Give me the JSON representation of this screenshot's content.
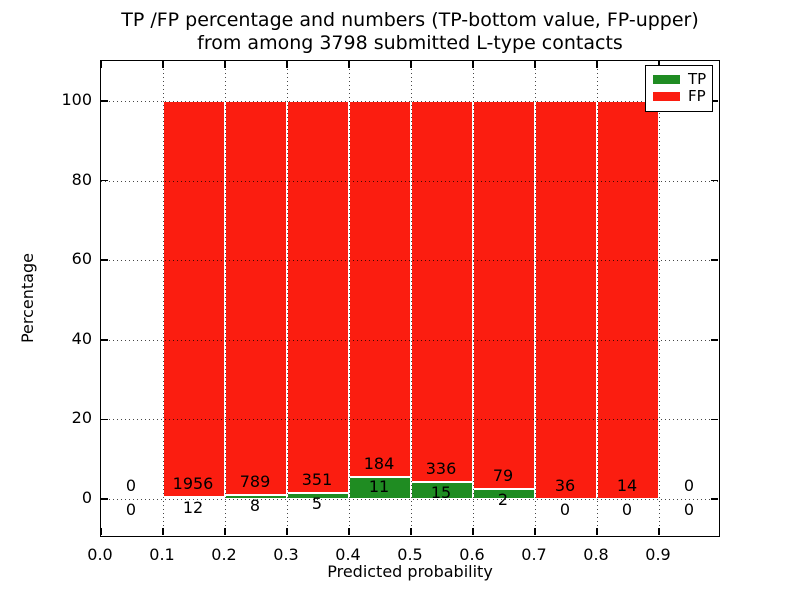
{
  "chart_data": {
    "type": "bar",
    "stacked": true,
    "title_lines": [
      "TP /FP percentage and numbers (TP-bottom value, FP-upper)",
      "from among 3798 submitted L-type contacts"
    ],
    "xlabel": "Predicted probability",
    "ylabel": "Percentage",
    "xlim": [
      0.0,
      1.0
    ],
    "ylim": [
      -10,
      110
    ],
    "xticks": [
      0.0,
      0.1,
      0.2,
      0.3,
      0.4,
      0.5,
      0.6,
      0.7,
      0.8,
      0.9
    ],
    "xtick_labels": [
      "0.0",
      "0.1",
      "0.2",
      "0.3",
      "0.4",
      "0.5",
      "0.6",
      "0.7",
      "0.8",
      "0.9"
    ],
    "yticks": [
      0,
      20,
      40,
      60,
      80,
      100
    ],
    "grid": "dotted",
    "total_contacts": 3798,
    "legend": {
      "position": "upper right",
      "entries": [
        {
          "label": "TP",
          "color": "#1f8c22"
        },
        {
          "label": "FP",
          "color": "#fb1d10"
        }
      ]
    },
    "colors": {
      "tp": "#1f8c22",
      "fp": "#fb1d10"
    },
    "bins": [
      {
        "range": "0.0-0.1",
        "center": 0.05,
        "tp": 0,
        "fp": 0
      },
      {
        "range": "0.1-0.2",
        "center": 0.15,
        "tp": 12,
        "fp": 1956
      },
      {
        "range": "0.2-0.3",
        "center": 0.25,
        "tp": 8,
        "fp": 789
      },
      {
        "range": "0.3-0.4",
        "center": 0.35,
        "tp": 5,
        "fp": 351
      },
      {
        "range": "0.4-0.5",
        "center": 0.45,
        "tp": 11,
        "fp": 184
      },
      {
        "range": "0.5-0.6",
        "center": 0.55,
        "tp": 15,
        "fp": 336
      },
      {
        "range": "0.6-0.7",
        "center": 0.65,
        "tp": 2,
        "fp": 79
      },
      {
        "range": "0.7-0.8",
        "center": 0.75,
        "tp": 0,
        "fp": 36
      },
      {
        "range": "0.8-0.9",
        "center": 0.85,
        "tp": 0,
        "fp": 14
      },
      {
        "range": "0.9-1.0",
        "center": 0.95,
        "tp": 0,
        "fp": 0
      }
    ]
  }
}
